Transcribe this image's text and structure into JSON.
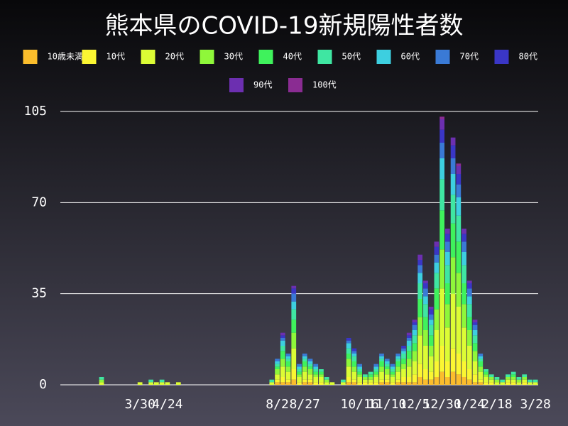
{
  "chart_data": {
    "type": "stacked_bar",
    "title": "熊本県のCOVID-19新規陽性者数",
    "ylim": [
      0,
      105
    ],
    "yticks": [
      0,
      35,
      70,
      105
    ],
    "grid": true,
    "categories": [
      null,
      null,
      null,
      null,
      null,
      null,
      null,
      null,
      null,
      null,
      null,
      null,
      null,
      null,
      "3/30",
      null,
      null,
      null,
      null,
      "4/24",
      null,
      null,
      null,
      null,
      null,
      null,
      null,
      null,
      null,
      null,
      null,
      null,
      null,
      null,
      null,
      null,
      null,
      null,
      null,
      "8/2",
      null,
      null,
      null,
      null,
      "8/27",
      null,
      null,
      null,
      null,
      null,
      null,
      null,
      null,
      null,
      "10/16",
      null,
      null,
      null,
      null,
      "11/10",
      null,
      null,
      null,
      null,
      "12/5",
      null,
      null,
      null,
      null,
      "12/30",
      null,
      null,
      null,
      null,
      "1/24",
      null,
      null,
      null,
      null,
      "2/18",
      null,
      null,
      null,
      null,
      null,
      null,
      "3/28"
    ],
    "series": [
      {
        "name": "10歳未満",
        "color": "#fbbd2c",
        "values": [
          0,
          0,
          0,
          0,
          0,
          0,
          0,
          0,
          0,
          0,
          0,
          0,
          0,
          0,
          0,
          0,
          0,
          0,
          0,
          0,
          0,
          0,
          0,
          0,
          0,
          0,
          0,
          0,
          0,
          0,
          0,
          0,
          0,
          0,
          0,
          0,
          0,
          0,
          0,
          1,
          1,
          1,
          2,
          0,
          1,
          1,
          0,
          0,
          0,
          0,
          0,
          0,
          1,
          1,
          0,
          0,
          0,
          0,
          1,
          1,
          0,
          1,
          1,
          1,
          1,
          3,
          2,
          2,
          3,
          5,
          3,
          5,
          4,
          3,
          2,
          1,
          1,
          0,
          0,
          0,
          0,
          0,
          0,
          0,
          0,
          0,
          0
        ]
      },
      {
        "name": "10代",
        "color": "#fbf632",
        "values": [
          0,
          0,
          0,
          0,
          0,
          0,
          0,
          0,
          0,
          0,
          0,
          0,
          0,
          0,
          0,
          0,
          0,
          0,
          0,
          0,
          0,
          0,
          0,
          0,
          0,
          0,
          0,
          0,
          0,
          0,
          0,
          0,
          0,
          0,
          0,
          0,
          0,
          0,
          0,
          1,
          2,
          1,
          4,
          1,
          1,
          1,
          1,
          1,
          0,
          0,
          0,
          0,
          2,
          1,
          1,
          1,
          1,
          1,
          1,
          1,
          1,
          1,
          2,
          2,
          3,
          5,
          4,
          3,
          6,
          10,
          6,
          9,
          8,
          6,
          4,
          3,
          1,
          1,
          1,
          0,
          0,
          1,
          1,
          0,
          1,
          0,
          0
        ]
      },
      {
        "name": "20代",
        "color": "#dcfc35",
        "values": [
          0,
          0,
          0,
          0,
          0,
          0,
          0,
          1,
          0,
          0,
          0,
          0,
          0,
          0,
          1,
          0,
          1,
          1,
          1,
          1,
          0,
          1,
          0,
          0,
          0,
          0,
          0,
          0,
          0,
          0,
          0,
          0,
          0,
          0,
          0,
          0,
          0,
          0,
          1,
          2,
          4,
          3,
          8,
          2,
          3,
          2,
          2,
          2,
          1,
          1,
          0,
          1,
          4,
          3,
          2,
          1,
          1,
          2,
          3,
          2,
          2,
          3,
          3,
          4,
          5,
          11,
          9,
          6,
          12,
          22,
          13,
          21,
          18,
          13,
          9,
          5,
          3,
          2,
          1,
          1,
          1,
          1,
          1,
          1,
          1,
          1,
          1
        ]
      },
      {
        "name": "30代",
        "color": "#8ff73a",
        "values": [
          0,
          0,
          0,
          0,
          0,
          0,
          0,
          1,
          0,
          0,
          0,
          0,
          0,
          0,
          0,
          0,
          0,
          0,
          0,
          0,
          0,
          0,
          0,
          0,
          0,
          0,
          0,
          0,
          0,
          0,
          0,
          0,
          0,
          0,
          0,
          0,
          0,
          0,
          0,
          2,
          3,
          2,
          6,
          1,
          2,
          2,
          1,
          1,
          1,
          0,
          0,
          0,
          3,
          2,
          1,
          1,
          1,
          1,
          2,
          2,
          1,
          2,
          2,
          3,
          4,
          7,
          6,
          4,
          8,
          15,
          9,
          14,
          13,
          9,
          6,
          4,
          2,
          1,
          1,
          1,
          0,
          1,
          1,
          1,
          1,
          0,
          0
        ]
      },
      {
        "name": "40代",
        "color": "#3ff25c",
        "values": [
          0,
          0,
          0,
          0,
          0,
          0,
          0,
          0,
          0,
          0,
          0,
          0,
          0,
          0,
          0,
          0,
          0,
          0,
          0,
          0,
          0,
          0,
          0,
          0,
          0,
          0,
          0,
          0,
          0,
          0,
          0,
          0,
          0,
          0,
          0,
          0,
          0,
          0,
          0,
          1,
          3,
          2,
          5,
          1,
          2,
          1,
          1,
          1,
          0,
          0,
          0,
          0,
          2,
          2,
          1,
          0,
          1,
          1,
          2,
          1,
          1,
          2,
          2,
          3,
          3,
          7,
          5,
          4,
          8,
          15,
          8,
          13,
          12,
          8,
          5,
          3,
          2,
          1,
          0,
          0,
          0,
          0,
          1,
          0,
          0,
          0,
          0
        ]
      },
      {
        "name": "50代",
        "color": "#3fe6a2",
        "values": [
          0,
          0,
          0,
          0,
          0,
          0,
          0,
          1,
          0,
          0,
          0,
          0,
          0,
          0,
          0,
          0,
          1,
          0,
          1,
          0,
          0,
          0,
          0,
          0,
          0,
          0,
          0,
          0,
          0,
          0,
          0,
          0,
          0,
          0,
          0,
          0,
          0,
          0,
          1,
          1,
          2,
          1,
          4,
          1,
          1,
          1,
          1,
          1,
          1,
          0,
          0,
          1,
          2,
          2,
          1,
          1,
          1,
          1,
          1,
          1,
          1,
          1,
          2,
          2,
          3,
          6,
          5,
          4,
          6,
          12,
          7,
          11,
          10,
          7,
          5,
          3,
          1,
          1,
          1,
          1,
          1,
          1,
          1,
          1,
          1,
          1,
          1
        ]
      },
      {
        "name": "60代",
        "color": "#3dcfe0",
        "values": [
          0,
          0,
          0,
          0,
          0,
          0,
          0,
          0,
          0,
          0,
          0,
          0,
          0,
          0,
          0,
          0,
          0,
          0,
          0,
          0,
          0,
          0,
          0,
          0,
          0,
          0,
          0,
          0,
          0,
          0,
          0,
          0,
          0,
          0,
          0,
          0,
          0,
          0,
          0,
          1,
          2,
          1,
          3,
          1,
          1,
          1,
          1,
          0,
          0,
          0,
          0,
          0,
          2,
          1,
          1,
          0,
          0,
          1,
          1,
          1,
          1,
          1,
          1,
          2,
          2,
          4,
          3,
          2,
          4,
          8,
          5,
          8,
          7,
          5,
          3,
          2,
          1,
          0,
          0,
          0,
          0,
          0,
          0,
          0,
          0,
          0,
          0
        ]
      },
      {
        "name": "70代",
        "color": "#3a7ad6",
        "values": [
          0,
          0,
          0,
          0,
          0,
          0,
          0,
          0,
          0,
          0,
          0,
          0,
          0,
          0,
          0,
          0,
          0,
          0,
          0,
          0,
          0,
          0,
          0,
          0,
          0,
          0,
          0,
          0,
          0,
          0,
          0,
          0,
          0,
          0,
          0,
          0,
          0,
          0,
          0,
          1,
          1,
          1,
          3,
          1,
          1,
          1,
          1,
          0,
          0,
          0,
          0,
          0,
          1,
          1,
          1,
          0,
          0,
          1,
          1,
          1,
          1,
          1,
          1,
          1,
          2,
          3,
          3,
          2,
          3,
          6,
          4,
          6,
          5,
          4,
          3,
          2,
          1,
          0,
          0,
          0,
          0,
          0,
          0,
          0,
          0,
          0,
          0
        ]
      },
      {
        "name": "80代",
        "color": "#3a36c6",
        "values": [
          0,
          0,
          0,
          0,
          0,
          0,
          0,
          0,
          0,
          0,
          0,
          0,
          0,
          0,
          0,
          0,
          0,
          0,
          0,
          0,
          0,
          0,
          0,
          0,
          0,
          0,
          0,
          0,
          0,
          0,
          0,
          0,
          0,
          0,
          0,
          0,
          0,
          0,
          0,
          0,
          1,
          0,
          2,
          0,
          0,
          0,
          0,
          0,
          0,
          0,
          0,
          0,
          1,
          1,
          0,
          0,
          0,
          0,
          0,
          0,
          0,
          0,
          1,
          1,
          1,
          2,
          2,
          2,
          3,
          5,
          3,
          5,
          4,
          3,
          2,
          1,
          0,
          0,
          0,
          0,
          0,
          0,
          0,
          0,
          0,
          0,
          0
        ]
      },
      {
        "name": "90代",
        "color": "#6c2fb0",
        "values": [
          0,
          0,
          0,
          0,
          0,
          0,
          0,
          0,
          0,
          0,
          0,
          0,
          0,
          0,
          0,
          0,
          0,
          0,
          0,
          0,
          0,
          0,
          0,
          0,
          0,
          0,
          0,
          0,
          0,
          0,
          0,
          0,
          0,
          0,
          0,
          0,
          0,
          0,
          0,
          0,
          1,
          0,
          1,
          0,
          0,
          0,
          0,
          0,
          0,
          0,
          0,
          0,
          0,
          0,
          0,
          0,
          0,
          0,
          0,
          0,
          0,
          0,
          0,
          1,
          1,
          2,
          1,
          1,
          2,
          4,
          2,
          3,
          3,
          2,
          1,
          1,
          0,
          0,
          0,
          0,
          0,
          0,
          0,
          0,
          0,
          0,
          0
        ]
      },
      {
        "name": "100代",
        "color": "#8a2c92",
        "values": [
          0,
          0,
          0,
          0,
          0,
          0,
          0,
          0,
          0,
          0,
          0,
          0,
          0,
          0,
          0,
          0,
          0,
          0,
          0,
          0,
          0,
          0,
          0,
          0,
          0,
          0,
          0,
          0,
          0,
          0,
          0,
          0,
          0,
          0,
          0,
          0,
          0,
          0,
          0,
          0,
          0,
          0,
          0,
          0,
          0,
          0,
          0,
          0,
          0,
          0,
          0,
          0,
          0,
          0,
          0,
          0,
          0,
          0,
          0,
          0,
          0,
          0,
          0,
          0,
          0,
          0,
          0,
          0,
          0,
          1,
          0,
          0,
          1,
          0,
          0,
          0,
          0,
          0,
          0,
          0,
          0,
          0,
          0,
          0,
          0,
          0,
          0
        ]
      }
    ]
  }
}
